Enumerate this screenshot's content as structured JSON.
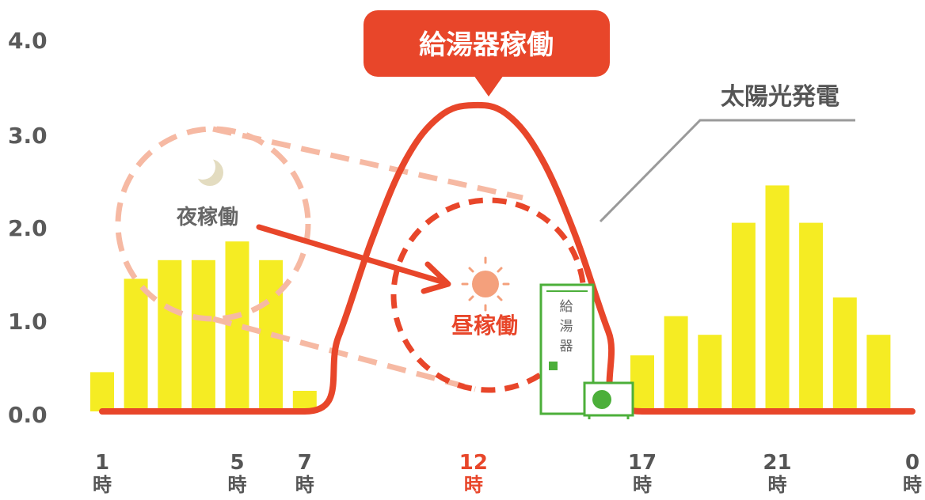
{
  "colors": {
    "bar": "#f5ec23",
    "solar_line": "#e8462a",
    "accent": "#e8462a",
    "night_dashed": "#f6b9a3",
    "heater": "#4caf3a",
    "sun": "#f4a07c",
    "moon": "#e3dcc0",
    "leader_line": "#9a9a9a"
  },
  "labels": {
    "callout": "給湯器稼働",
    "solar": "太陽光発電",
    "night": "夜稼働",
    "day": "昼稼働",
    "heater": [
      "給",
      "湯",
      "器"
    ]
  },
  "icons": {
    "moon": "crescent-moon-icon",
    "sun": "sun-icon",
    "heater": "water-heater-tank-icon",
    "heat_pump": "heat-pump-unit-icon"
  },
  "chart_data": {
    "type": "bar",
    "ylim": [
      0,
      4
    ],
    "yticks": [
      "0.0",
      "1.0",
      "2.0",
      "3.0",
      "4.0"
    ],
    "xlim": [
      1,
      25
    ],
    "xticks": [
      {
        "x": 1,
        "num": "1",
        "unit": "時",
        "highlight": false
      },
      {
        "x": 5,
        "num": "5",
        "unit": "時",
        "highlight": false
      },
      {
        "x": 7,
        "num": "7",
        "unit": "時",
        "highlight": false
      },
      {
        "x": 12,
        "num": "12",
        "unit": "時",
        "highlight": true
      },
      {
        "x": 17,
        "num": "17",
        "unit": "時",
        "highlight": false
      },
      {
        "x": 21,
        "num": "21",
        "unit": "時",
        "highlight": false
      },
      {
        "x": 25,
        "num": "0",
        "unit": "時",
        "highlight": false
      }
    ],
    "bars": [
      {
        "x": 1,
        "value": 0.42
      },
      {
        "x": 2,
        "value": 1.42
      },
      {
        "x": 3,
        "value": 1.62
      },
      {
        "x": 4,
        "value": 1.62
      },
      {
        "x": 5,
        "value": 1.82
      },
      {
        "x": 6,
        "value": 1.62
      },
      {
        "x": 7,
        "value": 0.22
      },
      {
        "x": 17,
        "value": 0.6
      },
      {
        "x": 18,
        "value": 1.02
      },
      {
        "x": 19,
        "value": 0.82
      },
      {
        "x": 20,
        "value": 2.02
      },
      {
        "x": 21,
        "value": 2.42
      },
      {
        "x": 22,
        "value": 2.02
      },
      {
        "x": 23,
        "value": 1.22
      },
      {
        "x": 24,
        "value": 0.82
      }
    ],
    "solar_curve": [
      {
        "x": 1,
        "y": 0.0
      },
      {
        "x": 7,
        "y": 0.0
      },
      {
        "x": 8,
        "y": 0.8
      },
      {
        "x": 9,
        "y": 1.85
      },
      {
        "x": 10,
        "y": 2.7
      },
      {
        "x": 11,
        "y": 3.16
      },
      {
        "x": 12,
        "y": 3.28
      },
      {
        "x": 13,
        "y": 3.18
      },
      {
        "x": 14,
        "y": 2.72
      },
      {
        "x": 15,
        "y": 1.9
      },
      {
        "x": 16,
        "y": 0.85
      },
      {
        "x": 17,
        "y": 0.0
      },
      {
        "x": 25,
        "y": 0.0
      }
    ]
  }
}
